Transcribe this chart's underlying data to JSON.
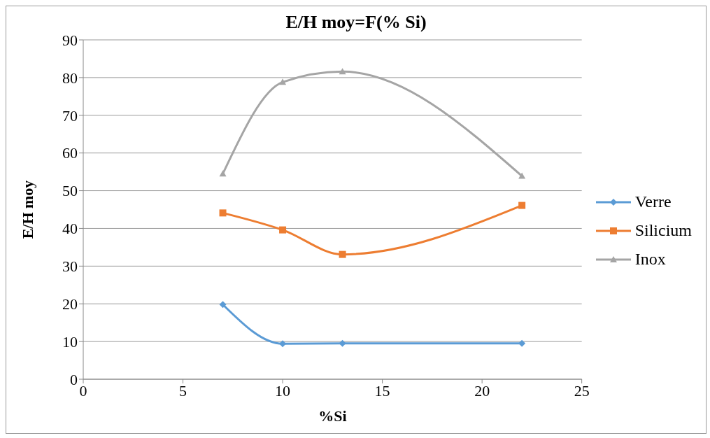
{
  "chart_data": {
    "type": "line",
    "title": "E/H moy=F(% Si)",
    "xlabel": "%Si",
    "ylabel": "E/H moy",
    "x": [
      7,
      10,
      13,
      22
    ],
    "series": [
      {
        "name": "Verre",
        "color": "#5b9bd5",
        "marker": "diamond",
        "values": [
          19.8,
          9.4,
          9.5,
          9.5
        ]
      },
      {
        "name": "Silicium",
        "color": "#ed7d31",
        "marker": "square",
        "values": [
          44.1,
          39.6,
          33.1,
          46.1
        ]
      },
      {
        "name": "Inox",
        "color": "#a5a5a5",
        "marker": "triangle",
        "values": [
          54.5,
          78.8,
          81.6,
          53.9
        ]
      }
    ],
    "xlim": [
      0,
      25
    ],
    "xticks": [
      0,
      5,
      10,
      15,
      20,
      25
    ],
    "ylim": [
      0,
      90
    ],
    "yticks": [
      0,
      10,
      20,
      30,
      40,
      50,
      60,
      70,
      80,
      90
    ],
    "grid": "y",
    "legend": "right"
  }
}
